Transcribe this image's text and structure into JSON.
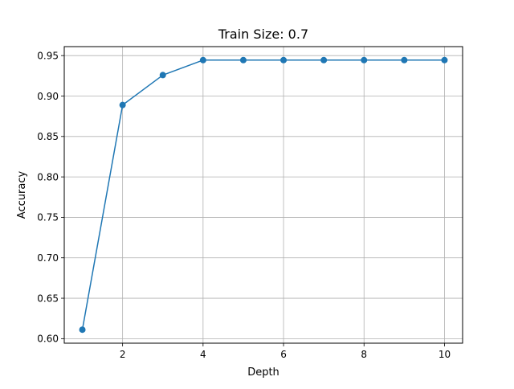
{
  "chart_data": {
    "type": "line",
    "title": "Train Size: 0.7",
    "xlabel": "Depth",
    "ylabel": "Accuracy",
    "x": [
      1,
      2,
      3,
      4,
      5,
      6,
      7,
      8,
      9,
      10
    ],
    "series": [
      {
        "values": [
          0.6111,
          0.8889,
          0.9259,
          0.9444,
          0.9444,
          0.9444,
          0.9444,
          0.9444,
          0.9444,
          0.9444
        ],
        "color": "#1f77b4",
        "marker": "circle"
      }
    ],
    "xlim": [
      0.55,
      10.45
    ],
    "ylim": [
      0.5944,
      0.9611
    ],
    "xticks": [
      2,
      4,
      6,
      8,
      10
    ],
    "xtick_labels": [
      "2",
      "4",
      "6",
      "8",
      "10"
    ],
    "yticks": [
      0.6,
      0.65,
      0.7,
      0.75,
      0.8,
      0.85,
      0.9,
      0.95
    ],
    "ytick_labels": [
      "0.60",
      "0.65",
      "0.70",
      "0.75",
      "0.80",
      "0.85",
      "0.90",
      "0.95"
    ],
    "grid": true,
    "grid_color": "#b0b0b0",
    "legend": "none"
  }
}
